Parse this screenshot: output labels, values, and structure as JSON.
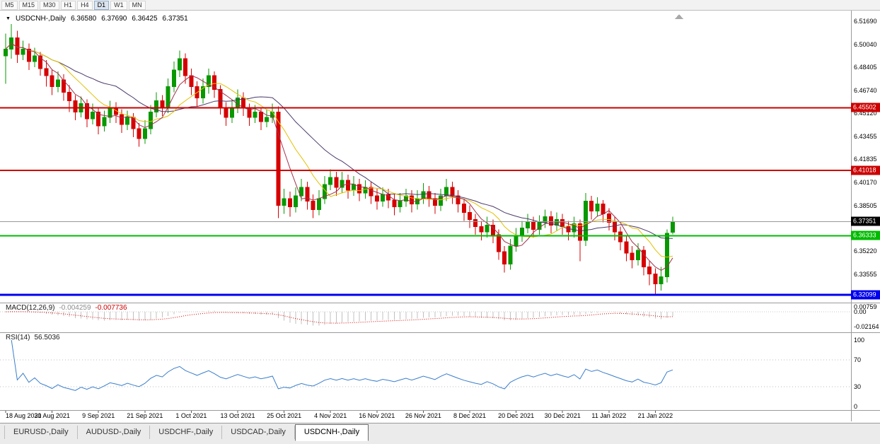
{
  "toolbar": {
    "timeframes": [
      "M5",
      "M15",
      "M30",
      "H1",
      "H4",
      "D1",
      "W1",
      "MN"
    ],
    "active": "D1"
  },
  "symbol_info": {
    "collapse_icon": "▼",
    "symbol": "USDCNH-,Daily",
    "open": "6.36580",
    "high": "6.37690",
    "low": "6.36425",
    "close": "6.37351"
  },
  "price_axis": {
    "ticks": [
      "6.51690",
      "6.50040",
      "6.48405",
      "6.46740",
      "6.45120",
      "6.43455",
      "6.41835",
      "6.40170",
      "6.38505",
      "6.35220",
      "6.33555"
    ]
  },
  "levels": [
    {
      "label": "6.45502",
      "price": 6.45502,
      "color": "#cc0000",
      "width": 2
    },
    {
      "label": "6.41018",
      "price": 6.41018,
      "color": "#cc0000",
      "width": 2
    },
    {
      "label": "6.36333",
      "price": 6.36333,
      "color": "#00bb00",
      "width": 2
    },
    {
      "label": "6.32099",
      "price": 6.32099,
      "color": "#0000ee",
      "width": 3
    }
  ],
  "current_price": {
    "label": "6.37351",
    "price": 6.37351,
    "badge_color": "#000000",
    "line_color": "#999999"
  },
  "macd_panel": {
    "name": "MACD(12,26,9)",
    "main_value": "-0.004259",
    "signal_value": "-0.007736",
    "axis_labels": [
      {
        "text": "0.00759",
        "value": 0.00759
      },
      {
        "text": "0.00",
        "value": 0
      },
      {
        "text": "-0.02164",
        "value": -0.02164
      }
    ]
  },
  "rsi_panel": {
    "name": "RSI(14)",
    "value": "56.5036",
    "axis_labels": [
      {
        "text": "100",
        "value": 100
      },
      {
        "text": "70",
        "value": 70
      },
      {
        "text": "30",
        "value": 30
      },
      {
        "text": "0",
        "value": 0
      }
    ],
    "level_lines": [
      70,
      30
    ]
  },
  "tabs": {
    "items": [
      "EURUSD-,Daily",
      "AUDUSD-,Daily",
      "USDCHF-,Daily",
      "USDCAD-,Daily",
      "USDCNH-,Daily"
    ],
    "active": "USDCNH-,Daily"
  },
  "colors": {
    "candle_up": "#089800",
    "candle_down": "#d60000",
    "ma_fast": "#a0334e",
    "ma_mid": "#e3c000",
    "ma_slow": "#4b3a6b",
    "macd_hist": "#c0c0c0",
    "macd_signal": "#dd0000",
    "macd_zero": "#c8c8c8",
    "rsi_line": "#3a7ecb",
    "rsi_levels": "#b8bccc",
    "separator": "#9a9a9a",
    "shift_marker": "#a8a8a8"
  },
  "chart_data": {
    "type": "candlestick",
    "title": "USDCNH-,Daily",
    "y_range": [
      6.3155,
      6.525
    ],
    "ma_periods": {
      "fast": 5,
      "mid": 10,
      "slow": 20
    },
    "macd_params": [
      12,
      26,
      9
    ],
    "rsi_period": 14,
    "x_label_step": 8,
    "x_labels": [
      "18 Aug 2021",
      "30 Aug 2021",
      "9 Sep 2021",
      "21 Sep 2021",
      "1 Oct 2021",
      "13 Oct 2021",
      "25 Oct 2021",
      "4 Nov 2021",
      "16 Nov 2021",
      "26 Nov 2021",
      "8 Dec 2021",
      "20 Dec 2021",
      "30 Dec 2021",
      "11 Jan 2022",
      "21 Jan 2022"
    ],
    "candles": [
      [
        6.492,
        6.508,
        6.472,
        6.497
      ],
      [
        6.497,
        6.515,
        6.49,
        6.505
      ],
      [
        6.505,
        6.51,
        6.487,
        6.493
      ],
      [
        6.493,
        6.503,
        6.489,
        6.497
      ],
      [
        6.497,
        6.501,
        6.482,
        6.488
      ],
      [
        6.488,
        6.498,
        6.484,
        6.492
      ],
      [
        6.492,
        6.495,
        6.478,
        6.483
      ],
      [
        6.483,
        6.489,
        6.47,
        6.478
      ],
      [
        6.478,
        6.482,
        6.464,
        6.47
      ],
      [
        6.47,
        6.481,
        6.466,
        6.475
      ],
      [
        6.475,
        6.479,
        6.46,
        6.466
      ],
      [
        6.466,
        6.471,
        6.452,
        6.46
      ],
      [
        6.46,
        6.464,
        6.446,
        6.452
      ],
      [
        6.452,
        6.463,
        6.448,
        6.458
      ],
      [
        6.458,
        6.461,
        6.441,
        6.447
      ],
      [
        6.447,
        6.458,
        6.443,
        6.452
      ],
      [
        6.452,
        6.455,
        6.436,
        6.442
      ],
      [
        6.442,
        6.453,
        6.438,
        6.448
      ],
      [
        6.448,
        6.46,
        6.444,
        6.455
      ],
      [
        6.455,
        6.459,
        6.444,
        6.45
      ],
      [
        6.45,
        6.454,
        6.437,
        6.443
      ],
      [
        6.443,
        6.453,
        6.439,
        6.448
      ],
      [
        6.448,
        6.451,
        6.434,
        6.44
      ],
      [
        6.44,
        6.444,
        6.427,
        6.433
      ],
      [
        6.433,
        6.446,
        6.429,
        6.44
      ],
      [
        6.44,
        6.457,
        6.436,
        6.452
      ],
      [
        6.452,
        6.466,
        6.448,
        6.46
      ],
      [
        6.46,
        6.464,
        6.449,
        6.455
      ],
      [
        6.455,
        6.476,
        6.451,
        6.47
      ],
      [
        6.47,
        6.488,
        6.466,
        6.482
      ],
      [
        6.482,
        6.496,
        6.477,
        6.49
      ],
      [
        6.49,
        6.494,
        6.472,
        6.478
      ],
      [
        6.478,
        6.483,
        6.464,
        6.47
      ],
      [
        6.47,
        6.474,
        6.456,
        6.462
      ],
      [
        6.462,
        6.476,
        6.458,
        6.47
      ],
      [
        6.47,
        6.483,
        6.465,
        6.478
      ],
      [
        6.478,
        6.481,
        6.462,
        6.468
      ],
      [
        6.468,
        6.471,
        6.45,
        6.455
      ],
      [
        6.455,
        6.459,
        6.442,
        6.448
      ],
      [
        6.448,
        6.461,
        6.444,
        6.455
      ],
      [
        6.455,
        6.468,
        6.451,
        6.462
      ],
      [
        6.462,
        6.466,
        6.449,
        6.455
      ],
      [
        6.455,
        6.458,
        6.442,
        6.448
      ],
      [
        6.448,
        6.457,
        6.444,
        6.452
      ],
      [
        6.452,
        6.455,
        6.439,
        6.445
      ],
      [
        6.445,
        6.454,
        6.441,
        6.448
      ],
      [
        6.448,
        6.458,
        6.444,
        6.452
      ],
      [
        6.452,
        6.456,
        6.376,
        6.385
      ],
      [
        6.385,
        6.397,
        6.379,
        6.39
      ],
      [
        6.39,
        6.395,
        6.377,
        6.384
      ],
      [
        6.384,
        6.398,
        6.38,
        6.392
      ],
      [
        6.392,
        6.404,
        6.388,
        6.398
      ],
      [
        6.398,
        6.402,
        6.382,
        6.388
      ],
      [
        6.388,
        6.393,
        6.376,
        6.382
      ],
      [
        6.382,
        6.396,
        6.378,
        6.39
      ],
      [
        6.39,
        6.406,
        6.386,
        6.4
      ],
      [
        6.4,
        6.411,
        6.396,
        6.405
      ],
      [
        6.405,
        6.409,
        6.392,
        6.398
      ],
      [
        6.398,
        6.409,
        6.394,
        6.403
      ],
      [
        6.403,
        6.407,
        6.39,
        6.396
      ],
      [
        6.396,
        6.406,
        6.392,
        6.4
      ],
      [
        6.4,
        6.404,
        6.388,
        6.394
      ],
      [
        6.394,
        6.403,
        6.39,
        6.398
      ],
      [
        6.398,
        6.402,
        6.386,
        6.392
      ],
      [
        6.392,
        6.397,
        6.382,
        6.388
      ],
      [
        6.388,
        6.398,
        6.384,
        6.393
      ],
      [
        6.393,
        6.397,
        6.383,
        6.389
      ],
      [
        6.389,
        6.393,
        6.378,
        6.384
      ],
      [
        6.384,
        6.394,
        6.38,
        6.388
      ],
      [
        6.388,
        6.397,
        6.384,
        6.392
      ],
      [
        6.392,
        6.396,
        6.38,
        6.386
      ],
      [
        6.386,
        6.396,
        6.382,
        6.39
      ],
      [
        6.39,
        6.401,
        6.386,
        6.395
      ],
      [
        6.395,
        6.399,
        6.384,
        6.39
      ],
      [
        6.39,
        6.394,
        6.379,
        6.385
      ],
      [
        6.385,
        6.397,
        6.381,
        6.392
      ],
      [
        6.392,
        6.404,
        6.388,
        6.398
      ],
      [
        6.398,
        6.402,
        6.386,
        6.392
      ],
      [
        6.392,
        6.396,
        6.38,
        6.386
      ],
      [
        6.386,
        6.39,
        6.374,
        6.38
      ],
      [
        6.38,
        6.385,
        6.369,
        6.375
      ],
      [
        6.375,
        6.379,
        6.364,
        6.37
      ],
      [
        6.37,
        6.374,
        6.36,
        6.366
      ],
      [
        6.366,
        6.377,
        6.362,
        6.371
      ],
      [
        6.371,
        6.375,
        6.358,
        6.364
      ],
      [
        6.364,
        6.368,
        6.346,
        6.352
      ],
      [
        6.352,
        6.356,
        6.337,
        6.343
      ],
      [
        6.343,
        6.361,
        6.339,
        6.356
      ],
      [
        6.356,
        6.369,
        6.352,
        6.363
      ],
      [
        6.363,
        6.374,
        6.359,
        6.369
      ],
      [
        6.369,
        6.379,
        6.365,
        6.373
      ],
      [
        6.373,
        6.377,
        6.362,
        6.368
      ],
      [
        6.368,
        6.378,
        6.364,
        6.373
      ],
      [
        6.373,
        6.382,
        6.369,
        6.377
      ],
      [
        6.377,
        6.381,
        6.365,
        6.371
      ],
      [
        6.371,
        6.38,
        6.367,
        6.375
      ],
      [
        6.375,
        6.379,
        6.364,
        6.37
      ],
      [
        6.37,
        6.374,
        6.36,
        6.366
      ],
      [
        6.366,
        6.377,
        6.362,
        6.372
      ],
      [
        6.372,
        6.375,
        6.345,
        6.36
      ],
      [
        6.36,
        6.394,
        6.356,
        6.388
      ],
      [
        6.388,
        6.392,
        6.375,
        6.381
      ],
      [
        6.381,
        6.391,
        6.377,
        6.386
      ],
      [
        6.386,
        6.389,
        6.373,
        6.379
      ],
      [
        6.379,
        6.383,
        6.367,
        6.373
      ],
      [
        6.373,
        6.377,
        6.36,
        6.366
      ],
      [
        6.366,
        6.37,
        6.353,
        6.359
      ],
      [
        6.359,
        6.363,
        6.345,
        6.351
      ],
      [
        6.351,
        6.356,
        6.34,
        6.346
      ],
      [
        6.346,
        6.358,
        6.342,
        6.353
      ],
      [
        6.353,
        6.356,
        6.335,
        6.341
      ],
      [
        6.341,
        6.345,
        6.328,
        6.336
      ],
      [
        6.336,
        6.34,
        6.321,
        6.329
      ],
      [
        6.329,
        6.341,
        6.324,
        6.334
      ],
      [
        6.334,
        6.368,
        6.33,
        6.365
      ],
      [
        6.3658,
        6.3769,
        6.36425,
        6.37351
      ]
    ]
  }
}
